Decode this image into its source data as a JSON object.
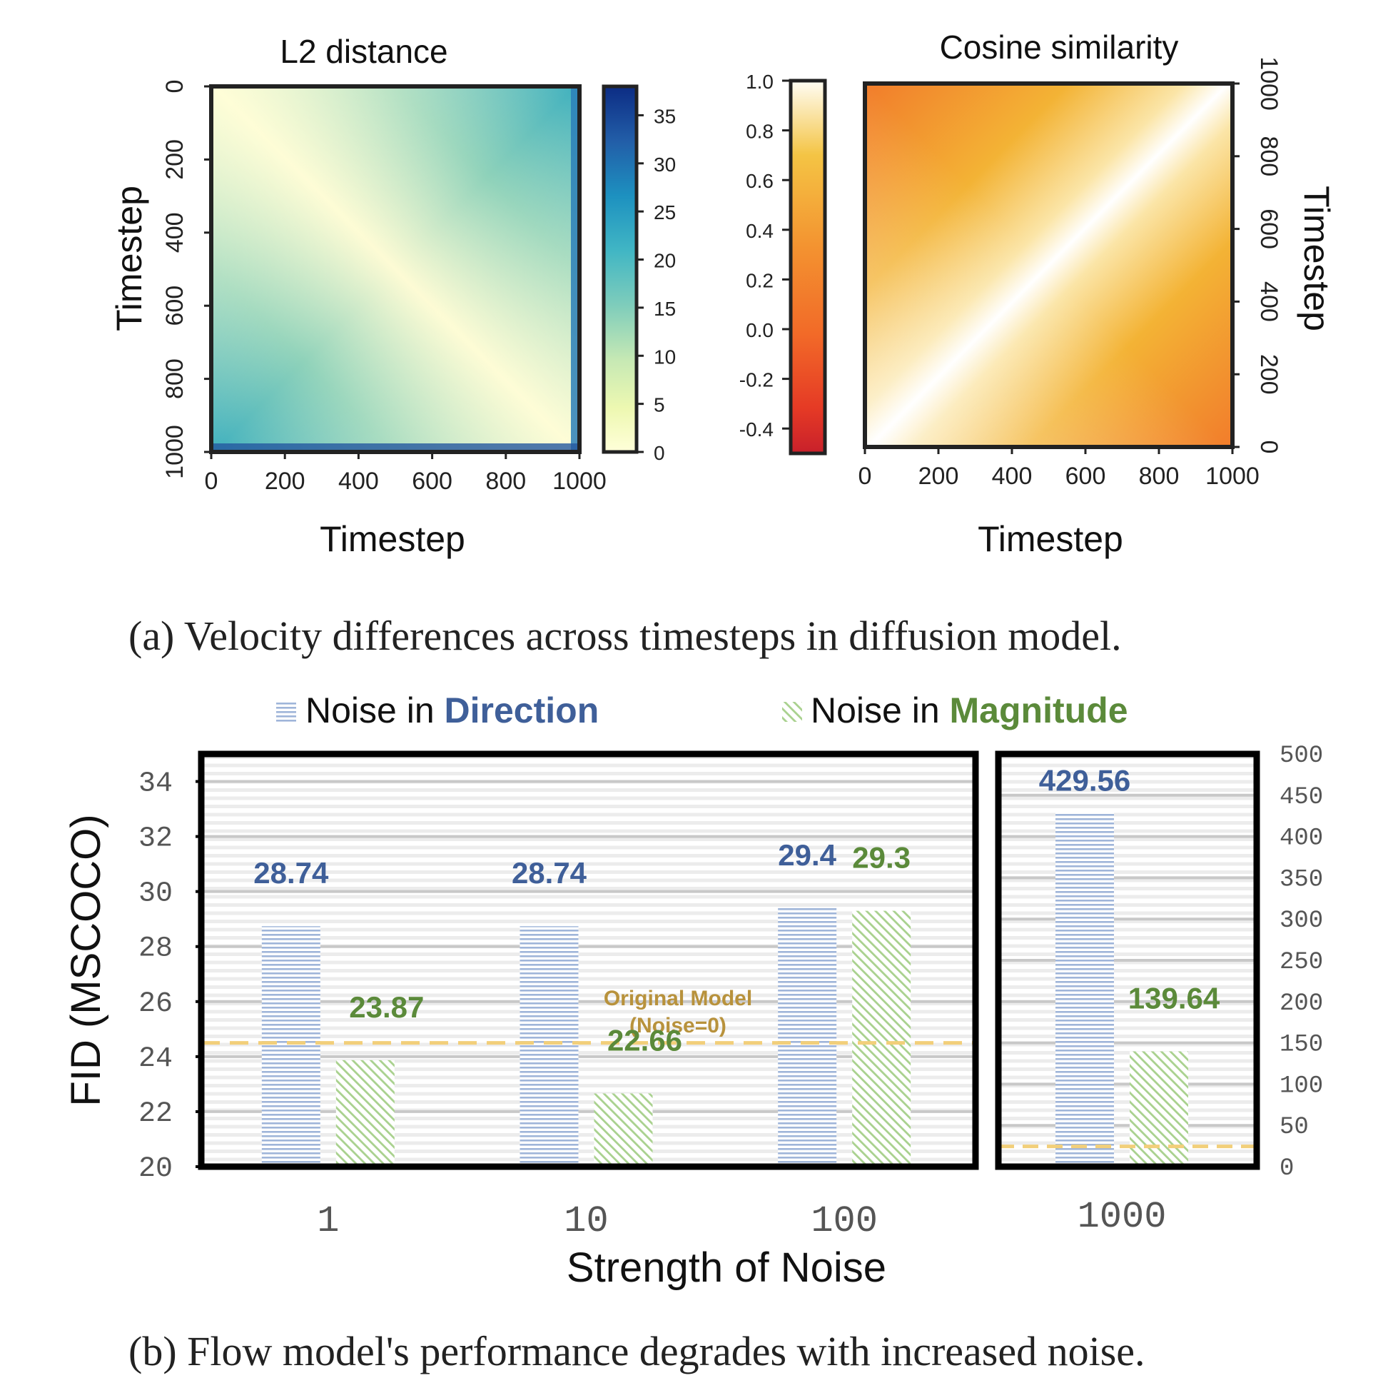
{
  "colors": {
    "direction": "#3f5f99",
    "direction_bar": "#9fb5d9",
    "magnitude": "#5b8a3a",
    "magnitude_bar": "#a9d18e",
    "original": "#b8923c",
    "original_line": "#f2cf7a"
  },
  "captions": {
    "a": "(a) Velocity differences across timesteps in diffusion model.",
    "b": "(b) Flow model's performance degrades with increased noise."
  },
  "chart_data": [
    {
      "type": "heatmap",
      "title": "L2 distance",
      "xlabel": "Timestep",
      "ylabel": "Timestep",
      "x_ticks": [
        "0",
        "200",
        "400",
        "600",
        "800",
        "1000"
      ],
      "y_ticks": [
        "0",
        "200",
        "400",
        "600",
        "800",
        "1000"
      ],
      "x_range": [
        0,
        1000
      ],
      "y_range": [
        0,
        1000
      ],
      "colorbar": {
        "range": [
          0,
          38
        ],
        "ticks": [
          "0",
          "5",
          "10",
          "15",
          "20",
          "25",
          "30",
          "35"
        ],
        "tick_values": [
          0,
          5,
          10,
          15,
          20,
          25,
          30,
          35
        ],
        "colormap": "YlGnBu",
        "placement": "right"
      }
    },
    {
      "type": "heatmap",
      "title": "Cosine similarity",
      "xlabel": "Timestep",
      "ylabel": "Timestep",
      "x_ticks": [
        "0",
        "200",
        "400",
        "600",
        "800",
        "1000"
      ],
      "y_ticks": [
        "0",
        "200",
        "400",
        "600",
        "800",
        "1000"
      ],
      "x_range": [
        0,
        1000
      ],
      "y_range": [
        0,
        1000
      ],
      "colorbar": {
        "range": [
          -0.5,
          1.0
        ],
        "ticks": [
          "1.0",
          "0.8",
          "0.6",
          "0.4",
          "0.2",
          "0.0",
          "-0.2",
          "-0.4"
        ],
        "tick_values": [
          1.0,
          0.8,
          0.6,
          0.4,
          0.2,
          0.0,
          -0.2,
          -0.4
        ],
        "colormap": "YlOrRd (reversed)",
        "placement": "left"
      }
    },
    {
      "type": "bar",
      "xlabel": "Strength of Noise",
      "ylabel": "FID (MSCOCO)",
      "legend": {
        "direction_prefix": "Noise in ",
        "direction_word": "Direction",
        "magnitude_prefix": "Noise in ",
        "magnitude_word": "Magnitude"
      },
      "original_label_1": "Original Model",
      "original_label_2": "(Noise=0)",
      "original_value": 24.5,
      "panels": [
        {
          "categories": [
            "1",
            "10",
            "100"
          ],
          "ylim": [
            20,
            35
          ],
          "y_ticks": [
            "20",
            "22",
            "24",
            "26",
            "28",
            "30",
            "32",
            "34"
          ],
          "y_tick_values": [
            20,
            22,
            24,
            26,
            28,
            30,
            32,
            34
          ],
          "series": [
            {
              "name": "Noise in Direction",
              "values": [
                28.74,
                28.74,
                29.4
              ],
              "labels": [
                "28.74",
                "28.74",
                "29.4"
              ]
            },
            {
              "name": "Noise in Magnitude",
              "values": [
                23.87,
                22.66,
                29.3
              ],
              "labels": [
                "23.87",
                "22.66",
                "29.3"
              ]
            }
          ]
        },
        {
          "categories": [
            "1000"
          ],
          "ylim": [
            0,
            500
          ],
          "y_ticks": [
            "0",
            "50",
            "100",
            "150",
            "200",
            "250",
            "300",
            "350",
            "400",
            "450",
            "500"
          ],
          "y_tick_values": [
            0,
            50,
            100,
            150,
            200,
            250,
            300,
            350,
            400,
            450,
            500
          ],
          "series": [
            {
              "name": "Noise in Direction",
              "values": [
                429.56
              ],
              "labels": [
                "429.56"
              ]
            },
            {
              "name": "Noise in Magnitude",
              "values": [
                139.64
              ],
              "labels": [
                "139.64"
              ]
            }
          ]
        }
      ]
    }
  ]
}
